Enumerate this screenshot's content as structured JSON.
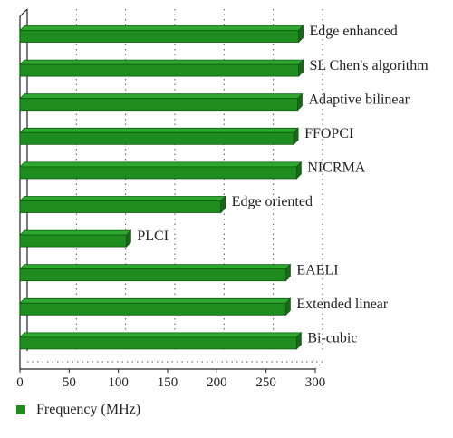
{
  "chart_data": {
    "type": "bar",
    "orientation": "horizontal",
    "categories": [
      "Edge enhanced",
      "SL Chen's algorithm",
      "Adaptive bilinear",
      "FFOPCI",
      "NICRMA",
      "Edge oriented",
      "PLCI",
      "EAELI",
      "Extended linear",
      "Bi-cubic"
    ],
    "series": [
      {
        "name": "Frequency (MHz)",
        "values": [
          283,
          283,
          282,
          278,
          281,
          204,
          108,
          270,
          270,
          281
        ]
      }
    ],
    "xticks": [
      0,
      50,
      100,
      150,
      200,
      250,
      300
    ],
    "xlim": [
      0,
      300
    ],
    "grid": "vertical dotted",
    "legend_position": "bottom-left",
    "bar_color": "#1e8c1e"
  }
}
